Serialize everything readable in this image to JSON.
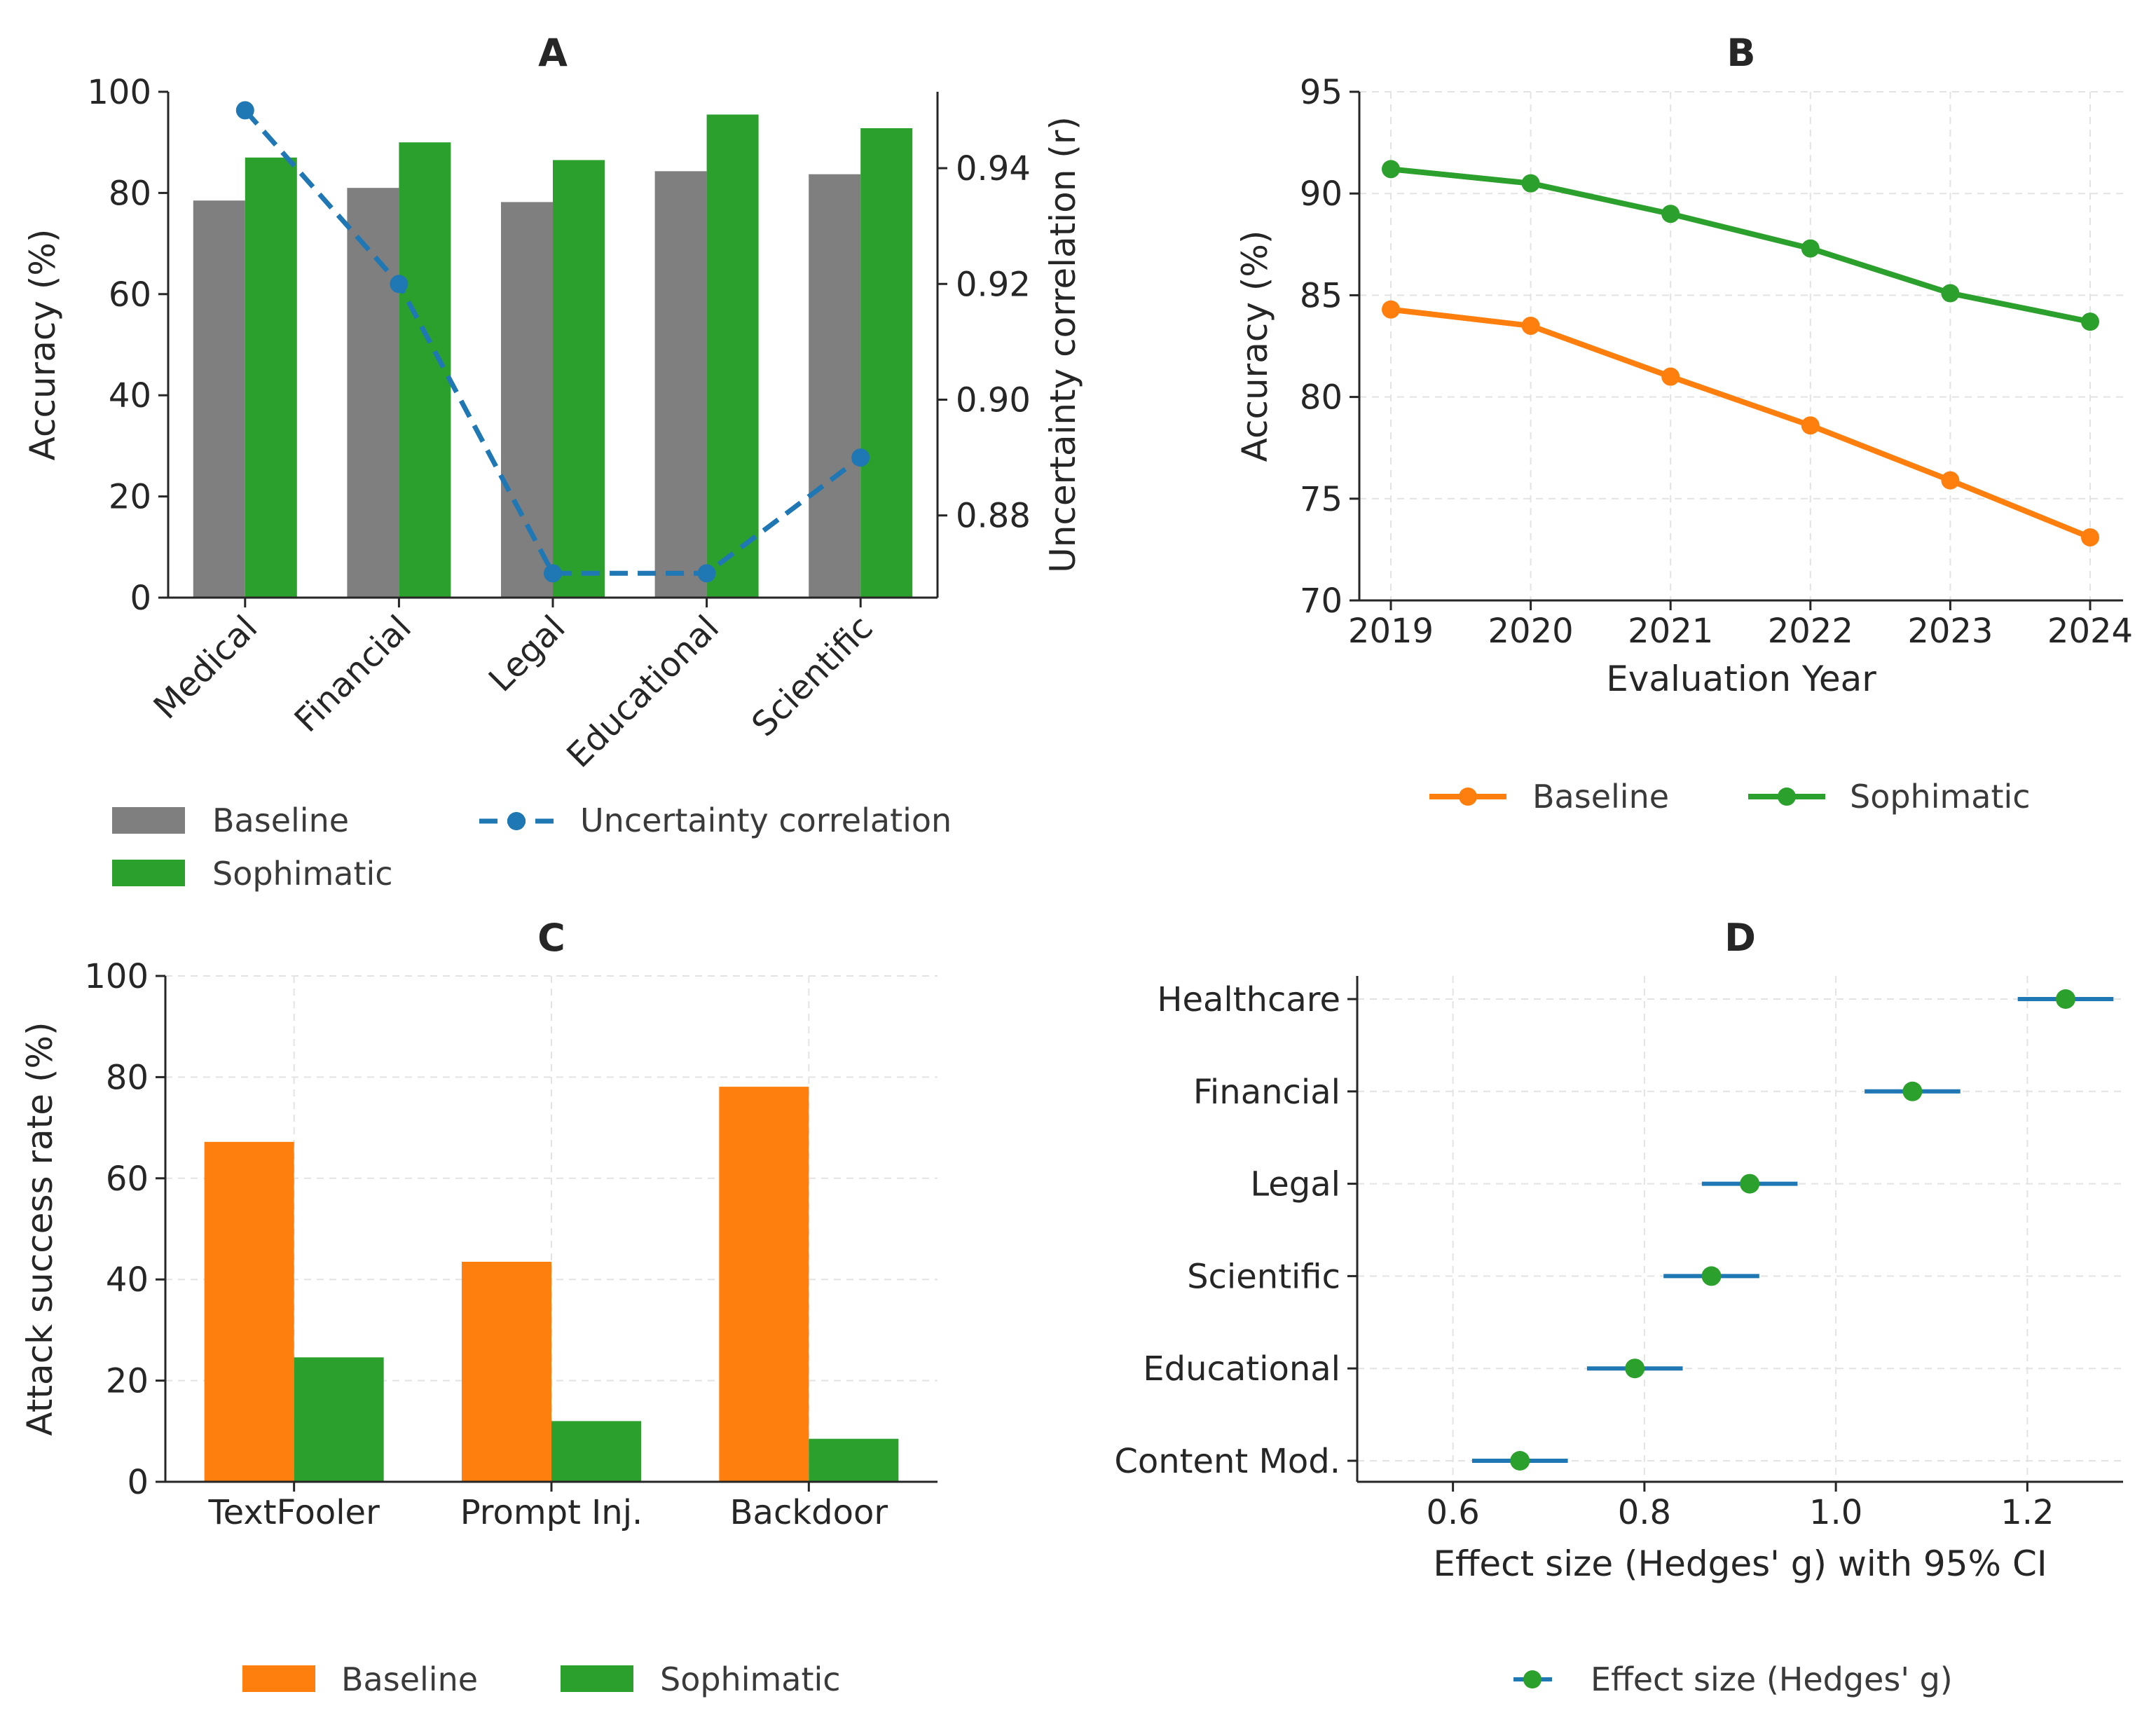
{
  "chart_data": [
    {
      "panel": "A",
      "type": "bar",
      "title": "A",
      "categories": [
        "Medical",
        "Financial",
        "Legal",
        "Educational",
        "Scientific"
      ],
      "series": [
        {
          "name": "Baseline",
          "values": [
            78.5,
            81,
            78.2,
            84.3,
            83.7
          ],
          "color": "#7f7f7f"
        },
        {
          "name": "Sophimatic",
          "values": [
            87,
            90,
            86.5,
            95.5,
            92.8
          ],
          "color": "#2ca02c"
        }
      ],
      "ylabel": "Accuracy (%)",
      "ylim": [
        0,
        100
      ],
      "yticks": [
        0,
        20,
        40,
        60,
        80,
        100
      ],
      "secondary_axis": {
        "name": "Uncertainty correlation",
        "ylabel": "Uncertainty correlation (r)",
        "values": [
          0.95,
          0.92,
          0.87,
          0.87,
          0.89
        ],
        "ylim": [
          0.8658,
          0.9532
        ],
        "yticks": [
          0.88,
          0.9,
          0.92,
          0.94
        ],
        "tick_labels": [
          "0.88",
          "0.90",
          "0.92",
          "0.94"
        ],
        "color": "#1f77b4"
      },
      "legend": [
        "Baseline",
        "Sophimatic",
        "Uncertainty correlation"
      ],
      "legend_position": "below"
    },
    {
      "panel": "B",
      "type": "line",
      "title": "B",
      "x": [
        "2019",
        "2020",
        "2021",
        "2022",
        "2023",
        "2024"
      ],
      "series": [
        {
          "name": "Baseline",
          "values": [
            84.3,
            83.5,
            81.0,
            78.6,
            75.9,
            73.1
          ],
          "color": "#ff7f0e"
        },
        {
          "name": "Sophimatic",
          "values": [
            91.2,
            90.5,
            89.0,
            87.3,
            85.1,
            83.7
          ],
          "color": "#2ca02c"
        }
      ],
      "xlabel": "Evaluation Year",
      "ylabel": "Accuracy (%)",
      "ylim": [
        70,
        95
      ],
      "yticks": [
        70,
        75,
        80,
        85,
        90,
        95
      ],
      "grid": true,
      "legend": [
        "Baseline",
        "Sophimatic"
      ],
      "legend_position": "below"
    },
    {
      "panel": "C",
      "type": "bar",
      "title": "C",
      "categories": [
        "TextFooler",
        "Prompt Inj.",
        "Backdoor"
      ],
      "series": [
        {
          "name": "Baseline",
          "values": [
            67.2,
            43.5,
            78.1
          ],
          "color": "#ff7f0e"
        },
        {
          "name": "Sophimatic",
          "values": [
            24.6,
            12.0,
            8.5
          ],
          "color": "#2ca02c"
        }
      ],
      "ylabel": "Attack success rate (%)",
      "ylim": [
        0,
        100
      ],
      "yticks": [
        0,
        20,
        40,
        60,
        80,
        100
      ],
      "grid": true,
      "legend": [
        "Baseline",
        "Sophimatic"
      ],
      "legend_position": "below"
    },
    {
      "panel": "D",
      "type": "scatter",
      "title": "D",
      "categories": [
        "Healthcare",
        "Financial",
        "Legal",
        "Scientific",
        "Educational",
        "Content Mod."
      ],
      "values": [
        1.24,
        1.08,
        0.91,
        0.87,
        0.79,
        0.67
      ],
      "ci_low": [
        1.19,
        1.03,
        0.86,
        0.82,
        0.74,
        0.62
      ],
      "ci_high": [
        1.29,
        1.13,
        0.96,
        0.92,
        0.84,
        0.72
      ],
      "xlabel": "Effect size (Hedges' g) with 95% CI",
      "xlim": [
        0.5,
        1.3
      ],
      "xticks": [
        0.6,
        0.8,
        1.0,
        1.2
      ],
      "xtick_labels": [
        "0.6",
        "0.8",
        "1.0",
        "1.2"
      ],
      "point_color": "#2ca02c",
      "errorbar_color": "#1f77b4",
      "grid": true,
      "legend": [
        "Effect size (Hedges' g)"
      ],
      "legend_position": "below"
    }
  ]
}
